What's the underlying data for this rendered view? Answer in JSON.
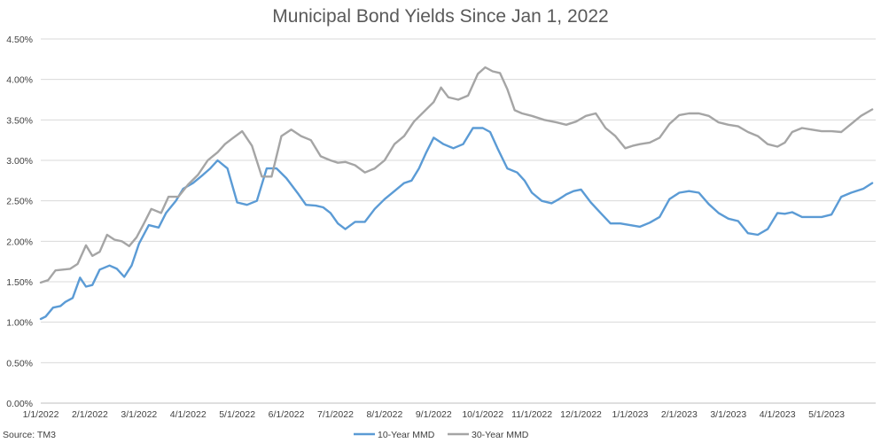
{
  "chart_data": {
    "type": "line",
    "title": "Municipal Bond Yields Since Jan 1, 2022",
    "source": "Source: TM3",
    "xlabel": "",
    "ylabel": "",
    "ylim": [
      0,
      4.5
    ],
    "yticks": [
      "0.00%",
      "0.50%",
      "1.00%",
      "1.50%",
      "2.00%",
      "2.50%",
      "3.00%",
      "3.50%",
      "4.00%",
      "4.50%"
    ],
    "xticks": [
      "1/1/2022",
      "2/1/2022",
      "3/1/2022",
      "4/1/2022",
      "5/1/2022",
      "6/1/2022",
      "7/1/2022",
      "8/1/2022",
      "9/1/2022",
      "10/1/2022",
      "11/1/2022",
      "12/1/2022",
      "1/1/2023",
      "2/1/2023",
      "3/1/2023",
      "4/1/2023",
      "5/1/2023"
    ],
    "grid": true,
    "legend_position": "bottom",
    "series": [
      {
        "name": "10-Year MMD",
        "color": "#5b9bd5",
        "x": [
          0,
          0.1,
          0.25,
          0.4,
          0.5,
          0.65,
          0.8,
          0.92,
          1.05,
          1.2,
          1.4,
          1.55,
          1.7,
          1.85,
          2.0,
          2.2,
          2.4,
          2.55,
          2.75,
          2.9,
          3.1,
          3.3,
          3.45,
          3.6,
          3.8,
          4.0,
          4.2,
          4.4,
          4.6,
          4.8,
          5.0,
          5.1,
          5.25,
          5.4,
          5.6,
          5.75,
          5.9,
          6.05,
          6.2,
          6.4,
          6.6,
          6.8,
          7.0,
          7.2,
          7.4,
          7.55,
          7.7,
          7.85,
          8.0,
          8.2,
          8.4,
          8.6,
          8.8,
          9.0,
          9.15,
          9.3,
          9.5,
          9.7,
          9.85,
          10.0,
          10.2,
          10.4,
          10.55,
          10.7,
          10.85,
          11.0,
          11.2,
          11.4,
          11.6,
          11.8,
          12.0,
          12.2,
          12.4,
          12.6,
          12.8,
          13.0,
          13.2,
          13.4,
          13.6,
          13.8,
          14.0,
          14.2,
          14.4,
          14.6,
          14.8,
          15.0,
          15.15,
          15.3,
          15.5,
          15.7,
          15.9,
          16.1,
          16.3,
          16.5,
          16.75,
          16.93
        ],
        "values": [
          1.04,
          1.07,
          1.18,
          1.2,
          1.25,
          1.3,
          1.55,
          1.44,
          1.46,
          1.65,
          1.7,
          1.66,
          1.56,
          1.7,
          1.97,
          2.2,
          2.17,
          2.35,
          2.5,
          2.65,
          2.72,
          2.82,
          2.9,
          3.0,
          2.9,
          2.48,
          2.45,
          2.5,
          2.9,
          2.9,
          2.78,
          2.7,
          2.58,
          2.45,
          2.44,
          2.42,
          2.35,
          2.22,
          2.15,
          2.24,
          2.24,
          2.4,
          2.52,
          2.62,
          2.72,
          2.75,
          2.9,
          3.1,
          3.28,
          3.2,
          3.15,
          3.2,
          3.4,
          3.4,
          3.35,
          3.15,
          2.9,
          2.85,
          2.75,
          2.6,
          2.5,
          2.47,
          2.52,
          2.58,
          2.62,
          2.64,
          2.48,
          2.35,
          2.22,
          2.22,
          2.2,
          2.18,
          2.23,
          2.3,
          2.52,
          2.6,
          2.62,
          2.6,
          2.46,
          2.35,
          2.28,
          2.25,
          2.1,
          2.08,
          2.15,
          2.35,
          2.34,
          2.36,
          2.3,
          2.3,
          2.3,
          2.33,
          2.55,
          2.6,
          2.65,
          2.72
        ]
      },
      {
        "name": "30-Year MMD",
        "color": "#a5a5a5",
        "x": [
          0,
          0.15,
          0.3,
          0.45,
          0.6,
          0.75,
          0.92,
          1.05,
          1.2,
          1.35,
          1.5,
          1.65,
          1.8,
          1.95,
          2.1,
          2.25,
          2.45,
          2.6,
          2.8,
          3.0,
          3.2,
          3.4,
          3.5,
          3.6,
          3.75,
          3.9,
          4.1,
          4.3,
          4.5,
          4.7,
          4.9,
          5.1,
          5.3,
          5.5,
          5.7,
          5.9,
          6.05,
          6.2,
          6.4,
          6.6,
          6.8,
          7.0,
          7.2,
          7.4,
          7.6,
          7.8,
          8.0,
          8.15,
          8.3,
          8.5,
          8.7,
          8.9,
          9.05,
          9.2,
          9.35,
          9.5,
          9.65,
          9.8,
          10.0,
          10.25,
          10.5,
          10.7,
          10.9,
          11.1,
          11.3,
          11.5,
          11.7,
          11.9,
          12.05,
          12.2,
          12.4,
          12.6,
          12.8,
          13.0,
          13.2,
          13.4,
          13.6,
          13.8,
          14.0,
          14.2,
          14.4,
          14.6,
          14.8,
          15.0,
          15.15,
          15.3,
          15.5,
          15.7,
          15.9,
          16.1,
          16.3,
          16.5,
          16.7,
          16.93
        ],
        "values": [
          1.49,
          1.52,
          1.64,
          1.65,
          1.66,
          1.72,
          1.95,
          1.82,
          1.87,
          2.08,
          2.02,
          2.0,
          1.94,
          2.05,
          2.22,
          2.4,
          2.35,
          2.55,
          2.55,
          2.7,
          2.82,
          3.0,
          3.05,
          3.1,
          3.2,
          3.27,
          3.36,
          3.18,
          2.8,
          2.8,
          3.3,
          3.38,
          3.3,
          3.25,
          3.05,
          3.0,
          2.97,
          2.98,
          2.94,
          2.85,
          2.9,
          3.0,
          3.2,
          3.3,
          3.48,
          3.6,
          3.72,
          3.9,
          3.78,
          3.75,
          3.8,
          4.07,
          4.15,
          4.1,
          4.08,
          3.88,
          3.62,
          3.58,
          3.55,
          3.5,
          3.47,
          3.44,
          3.48,
          3.55,
          3.58,
          3.4,
          3.3,
          3.15,
          3.18,
          3.2,
          3.22,
          3.28,
          3.45,
          3.56,
          3.58,
          3.58,
          3.55,
          3.47,
          3.44,
          3.42,
          3.35,
          3.3,
          3.2,
          3.17,
          3.22,
          3.35,
          3.4,
          3.38,
          3.36,
          3.36,
          3.35,
          3.45,
          3.55,
          3.63
        ]
      }
    ]
  }
}
